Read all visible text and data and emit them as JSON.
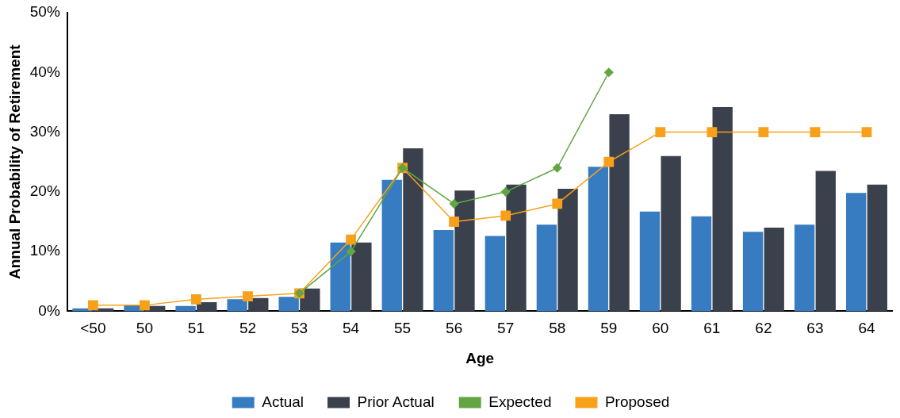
{
  "chart_data": {
    "type": "bar",
    "xlabel": "Age",
    "ylabel": "Annual Probability of Retirement",
    "categories": [
      "<50",
      "50",
      "51",
      "52",
      "53",
      "54",
      "55",
      "56",
      "57",
      "58",
      "59",
      "60",
      "61",
      "62",
      "63",
      "64"
    ],
    "series": [
      {
        "name": "Actual",
        "color": "#377bc0",
        "values": [
          0.5,
          1.0,
          0.9,
          2.0,
          2.4,
          11.5,
          22,
          13.6,
          12.6,
          14.5,
          24.2,
          16.7,
          15.9,
          13.3,
          14.5,
          19.8
        ]
      },
      {
        "name": "Prior Actual",
        "color": "#3b414c",
        "values": [
          0.5,
          0.9,
          1.5,
          2.2,
          3.8,
          11.5,
          27.3,
          20.2,
          21.2,
          20.5,
          33,
          26,
          34.2,
          14,
          23.5,
          21.2
        ]
      },
      {
        "name": "Expected",
        "type": "line",
        "color": "#62a542",
        "marker": "diamond",
        "values": [
          null,
          null,
          null,
          null,
          3,
          10,
          24,
          18,
          20,
          24,
          40,
          null,
          null,
          null,
          null,
          null
        ]
      },
      {
        "name": "Proposed",
        "type": "line",
        "color": "#f7a11b",
        "marker": "square",
        "values": [
          1,
          1,
          2,
          2.5,
          3,
          12,
          24,
          15,
          16,
          18,
          25,
          30,
          30,
          30,
          30,
          30
        ]
      }
    ],
    "ylim": [
      0,
      50
    ],
    "yticks": [
      {
        "value": 0,
        "label": "0%"
      },
      {
        "value": 10,
        "label": "10%"
      },
      {
        "value": 20,
        "label": "20%"
      },
      {
        "value": 30,
        "label": "30%"
      },
      {
        "value": 40,
        "label": "40%"
      },
      {
        "value": 50,
        "label": "50%"
      }
    ],
    "grid": false,
    "legend": "bottom"
  }
}
